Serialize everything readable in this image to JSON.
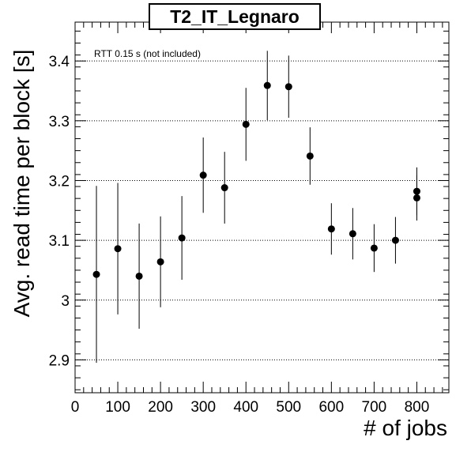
{
  "chart_data": {
    "type": "scatter",
    "title": "T2_IT_Legnaro",
    "xlabel": "# of jobs",
    "ylabel": "Avg. read time per block [s]",
    "annotation": "RTT 0.15 s (not included)",
    "xlim": [
      0,
      875
    ],
    "ylim": [
      2.845,
      3.465
    ],
    "xticks": [
      0,
      100,
      200,
      300,
      400,
      500,
      600,
      700,
      800
    ],
    "xtick_labels": [
      "0",
      "100",
      "200",
      "300",
      "400",
      "500",
      "600",
      "700",
      "800"
    ],
    "yticks": [
      2.9,
      3.0,
      3.1,
      3.2,
      3.3,
      3.4
    ],
    "ytick_labels": [
      "2.9",
      "3",
      "3.1",
      "3.2",
      "3.3",
      "3.4"
    ],
    "grid": "horizontal-dotted",
    "points": [
      {
        "x": 50,
        "y": 3.043,
        "err": 0.148
      },
      {
        "x": 100,
        "y": 3.086,
        "err": 0.11
      },
      {
        "x": 150,
        "y": 3.04,
        "err": 0.088
      },
      {
        "x": 200,
        "y": 3.064,
        "err": 0.076
      },
      {
        "x": 250,
        "y": 3.104,
        "err": 0.07
      },
      {
        "x": 300,
        "y": 3.209,
        "err": 0.063
      },
      {
        "x": 350,
        "y": 3.188,
        "err": 0.06
      },
      {
        "x": 400,
        "y": 3.294,
        "err": 0.061
      },
      {
        "x": 450,
        "y": 3.359,
        "err": 0.058
      },
      {
        "x": 500,
        "y": 3.357,
        "err": 0.052
      },
      {
        "x": 550,
        "y": 3.241,
        "err": 0.048
      },
      {
        "x": 600,
        "y": 3.119,
        "err": 0.043
      },
      {
        "x": 650,
        "y": 3.111,
        "err": 0.043
      },
      {
        "x": 700,
        "y": 3.087,
        "err": 0.04
      },
      {
        "x": 750,
        "y": 3.1,
        "err": 0.039
      },
      {
        "x": 800,
        "y": 3.171,
        "err": 0.038
      },
      {
        "x": 800,
        "y": 3.182,
        "err": 0.04
      }
    ]
  }
}
